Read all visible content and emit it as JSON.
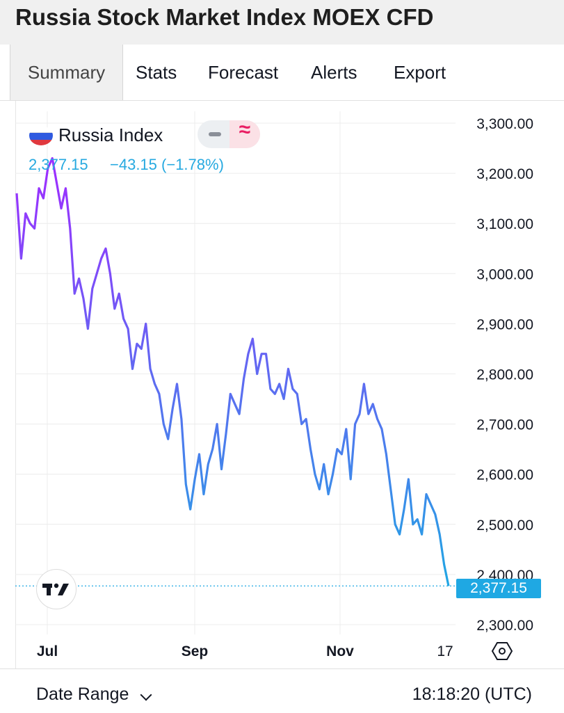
{
  "header": {
    "title": "Russia Stock Market Index MOEX CFD"
  },
  "tabs": [
    "Summary",
    "Stats",
    "Forecast",
    "Alerts",
    "Export"
  ],
  "legend": {
    "name": "Russia Index",
    "value": "2,377.15",
    "change": "−43.15 (−1.78%)",
    "minus_icon": "minus-icon",
    "wave_glyph": "≈"
  },
  "price_tag": "2,377.15",
  "footer": {
    "date_range_label": "Date Range",
    "time": "18:18:20 (UTC)"
  },
  "colors": {
    "line_start": "#9b30ff",
    "line_end": "#1fa8e3",
    "accent": "#1fa8e3",
    "negative": "#e91e63"
  },
  "chart_data": {
    "type": "line",
    "y_ticks": [
      "2,300.00",
      "2,400.00",
      "2,500.00",
      "2,600.00",
      "2,700.00",
      "2,800.00",
      "2,900.00",
      "3,000.00",
      "3,100.00",
      "3,200.00",
      "3,300.00"
    ],
    "ylim": [
      2300,
      3300
    ],
    "x_ticks": [
      "Jul",
      "Sep",
      "Nov",
      "17"
    ],
    "last_value": 2377.15,
    "grid": true,
    "series": [
      {
        "values": [
          3160,
          3030,
          3120,
          3100,
          3090,
          3170,
          3150,
          3210,
          3230,
          3180,
          3130,
          3170,
          3090,
          2960,
          2990,
          2950,
          2890,
          2970,
          3000,
          3030,
          3050,
          3000,
          2930,
          2960,
          2910,
          2890,
          2810,
          2860,
          2850,
          2900,
          2810,
          2780,
          2760,
          2700,
          2670,
          2730,
          2780,
          2710,
          2580,
          2530,
          2590,
          2640,
          2560,
          2620,
          2650,
          2700,
          2610,
          2680,
          2760,
          2740,
          2720,
          2790,
          2840,
          2870,
          2800,
          2840,
          2840,
          2770,
          2760,
          2780,
          2750,
          2810,
          2770,
          2760,
          2700,
          2710,
          2650,
          2600,
          2570,
          2620,
          2560,
          2600,
          2650,
          2640,
          2690,
          2590,
          2700,
          2720,
          2780,
          2720,
          2740,
          2710,
          2690,
          2640,
          2570,
          2500,
          2480,
          2530,
          2590,
          2500,
          2510,
          2480,
          2560,
          2540,
          2520,
          2480,
          2420,
          2377.15
        ]
      }
    ]
  }
}
